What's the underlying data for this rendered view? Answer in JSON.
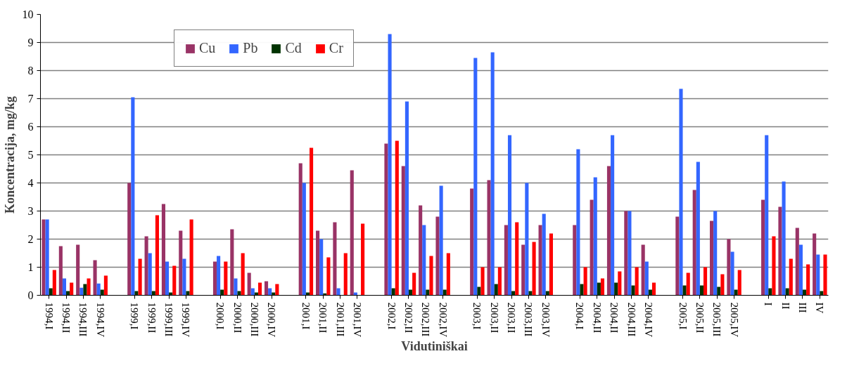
{
  "chart_data": {
    "type": "bar",
    "ylabel": "Koncentracija, mg/kg",
    "xlabel": "Vidutiniškai",
    "categories": [
      "1994,I",
      "1994,II",
      "1994,III",
      "1994,IV",
      null,
      "1999,I",
      "1999,II",
      "1999,III",
      "1999,IV",
      null,
      "2000,I",
      "2000,II",
      "2000,III",
      "2000,IV",
      null,
      "2001,I",
      "2001,II",
      "2001,III",
      "2001,IV",
      null,
      "2002,I",
      "2002,II",
      "2002,III",
      "2002,IV",
      null,
      "2003,I",
      "2003,II",
      "2003,II",
      "2003,III",
      "2003,IV",
      null,
      "2004,I",
      "2004,II",
      "2004,II",
      "2004,III",
      "2004,IV",
      null,
      "2005,I",
      "2005,II",
      "2005,III",
      "2005,IV",
      null,
      "I",
      "II",
      "III",
      "IV"
    ],
    "series": [
      {
        "name": "Cu",
        "color": "#993366",
        "values": [
          2.7,
          1.75,
          1.8,
          1.25,
          null,
          4.0,
          2.1,
          3.25,
          2.3,
          null,
          1.2,
          2.35,
          0.8,
          0.5,
          null,
          4.7,
          2.3,
          2.6,
          4.45,
          null,
          5.4,
          4.6,
          3.2,
          2.8,
          null,
          3.8,
          4.1,
          2.5,
          1.8,
          2.5,
          null,
          2.5,
          3.4,
          4.6,
          3.0,
          1.8,
          null,
          2.8,
          3.75,
          2.65,
          2.0,
          null,
          3.4,
          3.15,
          2.4,
          2.2
        ]
      },
      {
        "name": "Pb",
        "color": "#3366ff",
        "values": [
          2.7,
          0.6,
          0.27,
          0.42,
          null,
          7.05,
          1.5,
          1.2,
          1.3,
          null,
          1.4,
          0.6,
          0.25,
          0.25,
          null,
          4.0,
          2.0,
          0.25,
          0.1,
          null,
          9.3,
          6.9,
          2.5,
          3.9,
          null,
          8.45,
          8.65,
          5.7,
          4.0,
          2.9,
          null,
          5.2,
          4.2,
          5.7,
          3.0,
          1.2,
          null,
          7.35,
          4.75,
          3.0,
          1.55,
          null,
          5.7,
          4.05,
          1.8,
          1.45
        ]
      },
      {
        "name": "Cd",
        "color": "#003300",
        "values": [
          0.25,
          0.15,
          0.4,
          0.2,
          null,
          0.15,
          0.15,
          0.1,
          0.15,
          null,
          0.2,
          0.15,
          0.1,
          0.1,
          null,
          0.1,
          0.07,
          0,
          0,
          null,
          0.25,
          0.2,
          0.2,
          0.2,
          null,
          0.3,
          0.4,
          0.15,
          0.15,
          0.15,
          null,
          0.4,
          0.45,
          0.45,
          0.35,
          0.2,
          null,
          0.35,
          0.35,
          0.3,
          0.2,
          null,
          0.25,
          0.25,
          0.2,
          0.15
        ]
      },
      {
        "name": "Cr",
        "color": "#ff0000",
        "values": [
          0.9,
          0.45,
          0.6,
          0.7,
          null,
          1.3,
          2.85,
          1.05,
          2.7,
          null,
          1.2,
          1.5,
          0.45,
          0.4,
          null,
          5.25,
          1.35,
          1.5,
          2.55,
          null,
          5.5,
          0.8,
          1.4,
          1.5,
          null,
          1.0,
          1.0,
          2.6,
          1.9,
          2.2,
          null,
          1.0,
          0.6,
          0.85,
          1.0,
          0.45,
          null,
          0.8,
          1.0,
          0.75,
          0.9,
          null,
          2.1,
          1.3,
          1.1,
          1.45
        ]
      }
    ],
    "ylim": [
      0,
      10
    ],
    "yticks": [
      0,
      1,
      2,
      3,
      4,
      5,
      6,
      7,
      8,
      9,
      10
    ],
    "grid": "y",
    "legend": "top left"
  }
}
